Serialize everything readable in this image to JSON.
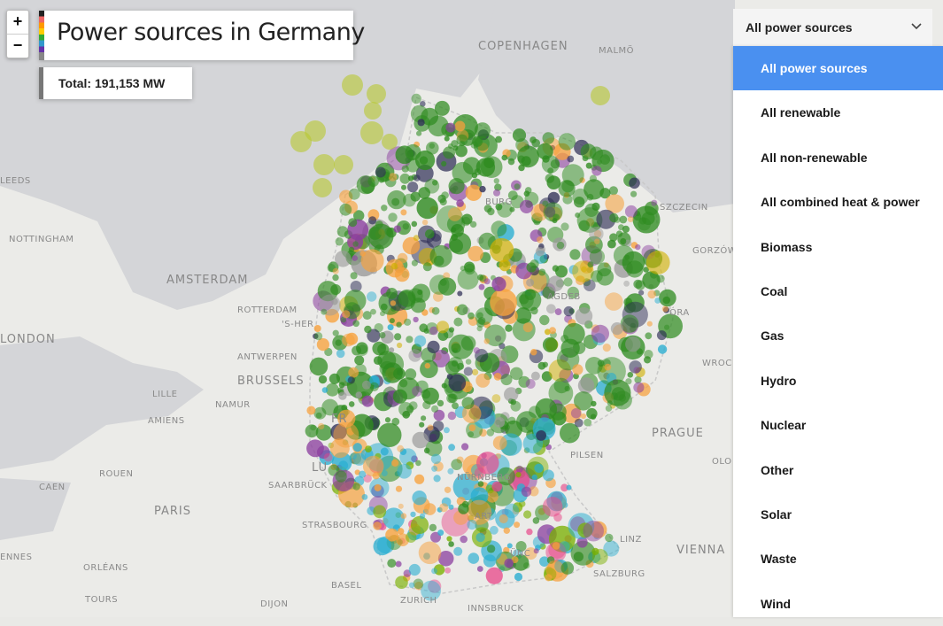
{
  "title": "Power sources in Germany",
  "total": "Total: 191,153 MW",
  "zoom": {
    "in": "+",
    "out": "−"
  },
  "dropdown": {
    "selected": "All power sources",
    "options": [
      "All power sources",
      "All renewable",
      "All non-renewable",
      "All combined heat & power",
      "Biomass",
      "Coal",
      "Gas",
      "Hydro",
      "Nuclear",
      "Other",
      "Solar",
      "Waste",
      "Wind"
    ]
  },
  "cities": [
    "COPENHAGEN",
    "MALMÖ",
    "SZCZECIN",
    "GORZÓW WIELKOPOLSKI",
    "NOTTINGHAM",
    "LEEDS",
    "AMSTERDAM",
    "ROTTERDAM",
    "'S-HER",
    "LONDON",
    "ANTWERPEN",
    "BRUSSELS",
    "LILLE",
    "NAMUR",
    "PRAGUE",
    "WROC",
    "AMIENS",
    "ROUEN",
    "CAEN",
    "PARIS",
    "SAARBRÜCK",
    "STRASBOURG",
    "PILSEN",
    "LINZ",
    "VIENNA",
    "SALZBURG",
    "ORLÉANS",
    "TOURS",
    "BASEL",
    "ZURICH",
    "INNSBRUCK",
    "DIJON",
    "OLO",
    "ENNES",
    "BURG",
    "AGDEB",
    "ÓRA",
    "FR",
    "LU",
    "NÜRNBERG",
    "ART",
    "ÜNC"
  ],
  "colors": {
    "wind": "#2e8b1f",
    "solar": "#f7a13c",
    "biomass": "#7ab000",
    "coal": "#2d2d55",
    "gas": "#8b3f9f",
    "hydro": "#2aaed1",
    "nuclear": "#e8498a",
    "other": "#9a9a9a",
    "waste": "#d1b000",
    "offshore": "#b8c830"
  }
}
